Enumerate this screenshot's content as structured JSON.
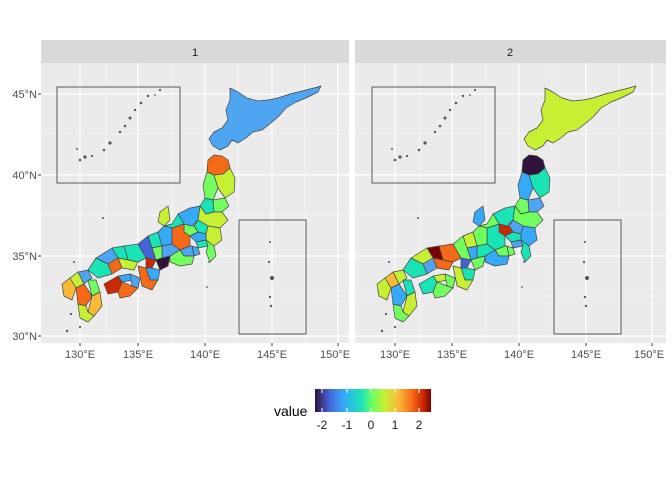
{
  "facets": [
    {
      "label": "1",
      "map_style": "facet1"
    },
    {
      "label": "2",
      "map_style": "facet2"
    }
  ],
  "axes": {
    "x_ticks": [
      "130°E",
      "135°E",
      "140°E",
      "145°E",
      "150°E"
    ],
    "y_ticks": [
      "45°N",
      "40°N",
      "35°N",
      "30°N"
    ]
  },
  "legend": {
    "title": "value",
    "ticks": [
      "-2",
      "-1",
      "0",
      "1",
      "2"
    ]
  },
  "colors": {
    "panel_bg": "#ebebeb",
    "strip_bg": "#d9d9d9",
    "grid": "#ffffff",
    "border": "#333333",
    "scale": [
      "#30123b",
      "#4662d7",
      "#36aaf9",
      "#1ae4b6",
      "#72fe5e",
      "#c7ef34",
      "#fbb938",
      "#f56918",
      "#c92903",
      "#7a0403"
    ]
  },
  "chart_data": {
    "type": "map",
    "description_values": {
      "facet_1": {
        "hokkaido": -1.4,
        "tohoku_north": 0.5,
        "kanto_center": 1.3,
        "chugoku": 1.6,
        "kinki_west": -2.2
      },
      "facet_2": {
        "hokkaido": 0.7,
        "aomori": -2.3,
        "kanto_center": 2.4,
        "chubu": -0.2
      }
    },
    "x_range": [
      127,
      150.5
    ],
    "y_range": [
      29.5,
      46.8
    ],
    "legend": {
      "title": "value",
      "min": -2.5,
      "max": 2.5,
      "ticks": [
        -2,
        -1,
        0,
        1,
        2
      ]
    }
  }
}
